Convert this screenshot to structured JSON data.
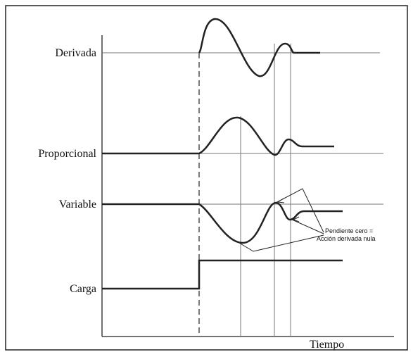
{
  "labels": {
    "derivative": "Derivada",
    "proportional": "Proporcional",
    "variable": "Variable",
    "load": "Carga",
    "time": "Tiempo"
  },
  "annotation": {
    "line1": "Pendiente cero =",
    "line2": "Acción derivada nula"
  }
}
